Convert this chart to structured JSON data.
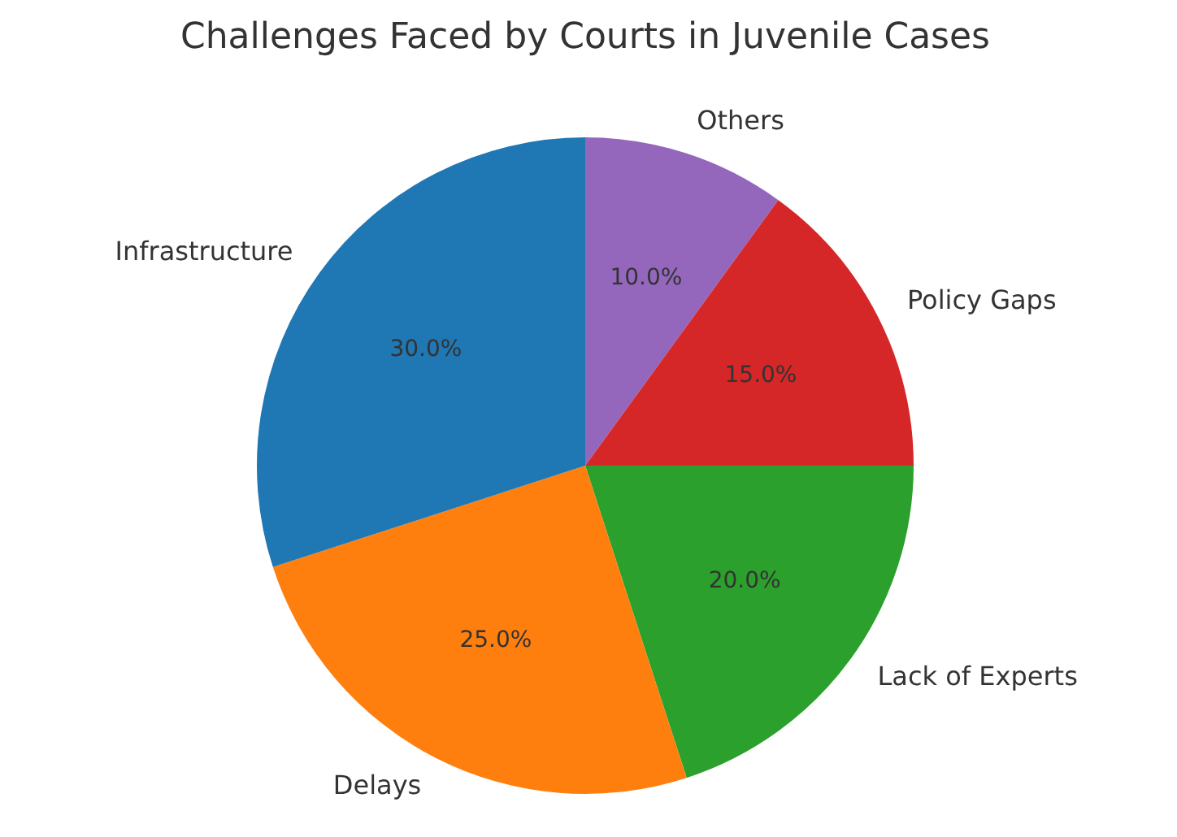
{
  "chart_data": {
    "type": "pie",
    "title": "Challenges Faced by Courts in Juvenile Cases",
    "categories": [
      "Others",
      "Policy Gaps",
      "Lack of Experts",
      "Delays",
      "Infrastructure"
    ],
    "values": [
      10,
      15,
      20,
      25,
      30
    ],
    "colors": [
      "#9467bd",
      "#d62728",
      "#2ca02c",
      "#ff7f0e",
      "#1f77b4"
    ],
    "value_labels": [
      "10.0%",
      "15.0%",
      "20.0%",
      "25.0%",
      "30.0%"
    ],
    "legend": false
  }
}
